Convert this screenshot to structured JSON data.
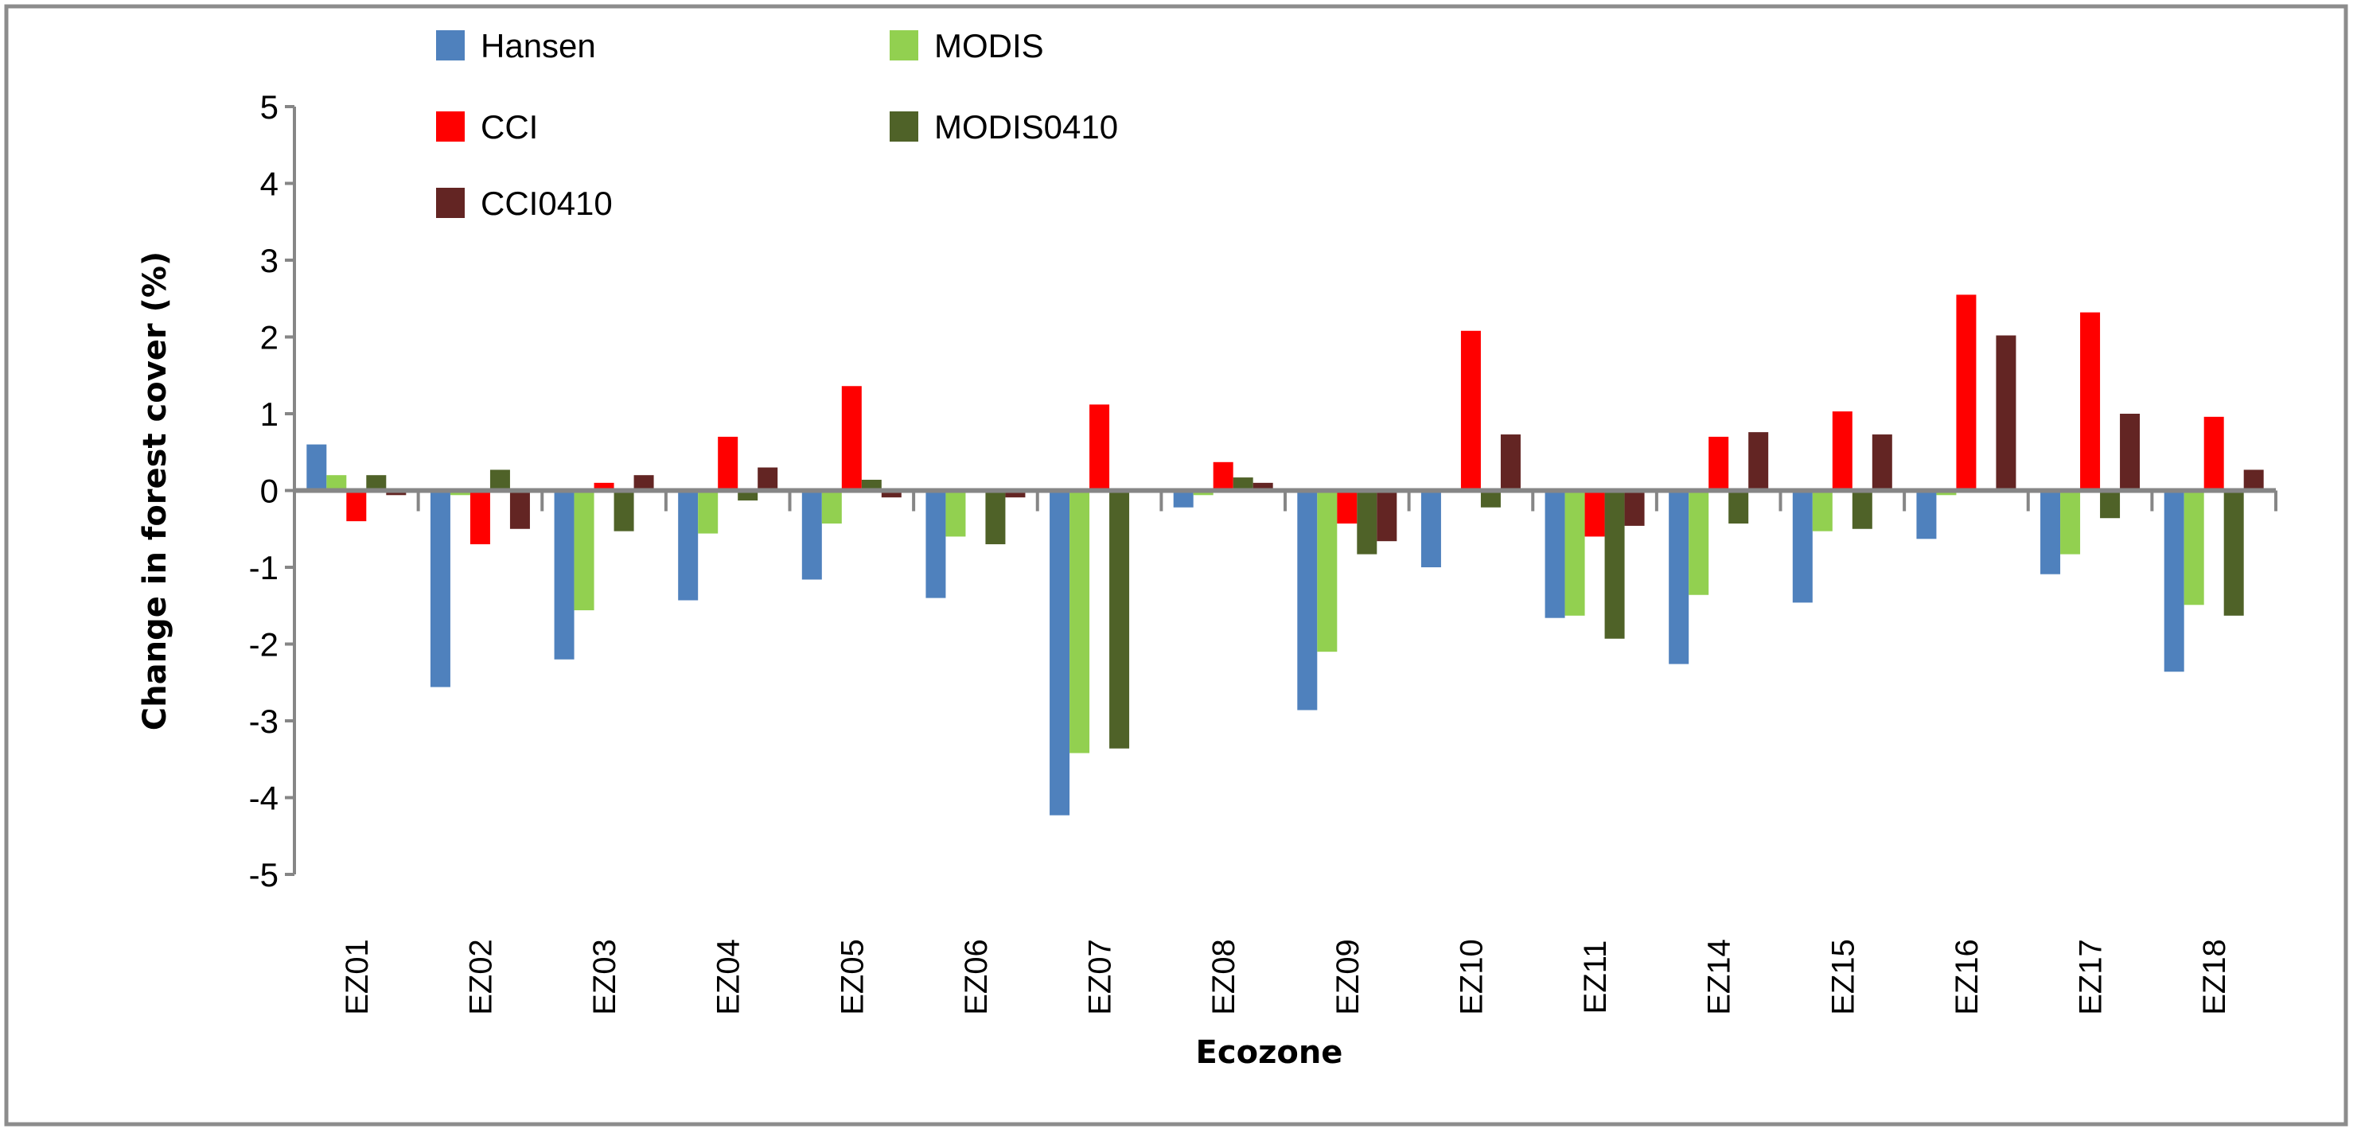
{
  "chart_data": {
    "type": "bar",
    "title": "",
    "xlabel": "Ecozone",
    "ylabel": "Change in forest cover (%)",
    "ylim": [
      -5,
      5
    ],
    "yticks": [
      "5",
      "4",
      "3",
      "2",
      "1",
      "0",
      "-1",
      "-2",
      "-3",
      "-4",
      "-5"
    ],
    "grid": false,
    "legend_position": "top-left",
    "categories": [
      "EZ01",
      "EZ02",
      "EZ03",
      "EZ04",
      "EZ05",
      "EZ06",
      "EZ07",
      "EZ08",
      "EZ09",
      "EZ10",
      "EZ11",
      "EZ14",
      "EZ15",
      "EZ16",
      "EZ17",
      "EZ18"
    ],
    "series": [
      {
        "name": "Hansen",
        "color": "#4f81bd",
        "values": [
          0.6,
          -2.56,
          -2.2,
          -1.43,
          -1.16,
          -1.4,
          -4.23,
          -0.22,
          -2.86,
          -1.0,
          -1.66,
          -2.26,
          -1.46,
          -0.63,
          -1.09,
          -2.36
        ]
      },
      {
        "name": "MODIS",
        "color": "#92d050",
        "values": [
          0.2,
          -0.06,
          -1.56,
          -0.56,
          -0.43,
          -0.6,
          -3.42,
          -0.06,
          -2.1,
          0,
          -1.63,
          -1.36,
          -0.53,
          -0.06,
          -0.83,
          -1.49
        ]
      },
      {
        "name": "CCI",
        "color": "#ff0000",
        "values": [
          -0.4,
          -0.7,
          0.1,
          0.7,
          1.36,
          0,
          1.12,
          0.37,
          -0.43,
          2.08,
          -0.6,
          0.7,
          1.03,
          2.55,
          2.32,
          0.96
        ]
      },
      {
        "name": "MODIS0410",
        "color": "#4f6228",
        "values": [
          0.2,
          0.27,
          -0.53,
          -0.13,
          0.14,
          -0.7,
          -3.36,
          0.17,
          -0.83,
          -0.22,
          -1.93,
          -0.43,
          -0.5,
          0,
          -0.36,
          -1.63
        ]
      },
      {
        "name": "CCI0410",
        "color": "#632523",
        "values": [
          -0.06,
          -0.5,
          0.2,
          0.3,
          -0.09,
          -0.09,
          0,
          0.1,
          -0.66,
          0.73,
          -0.46,
          0.76,
          0.73,
          2.02,
          1.0,
          0.27
        ]
      }
    ]
  }
}
